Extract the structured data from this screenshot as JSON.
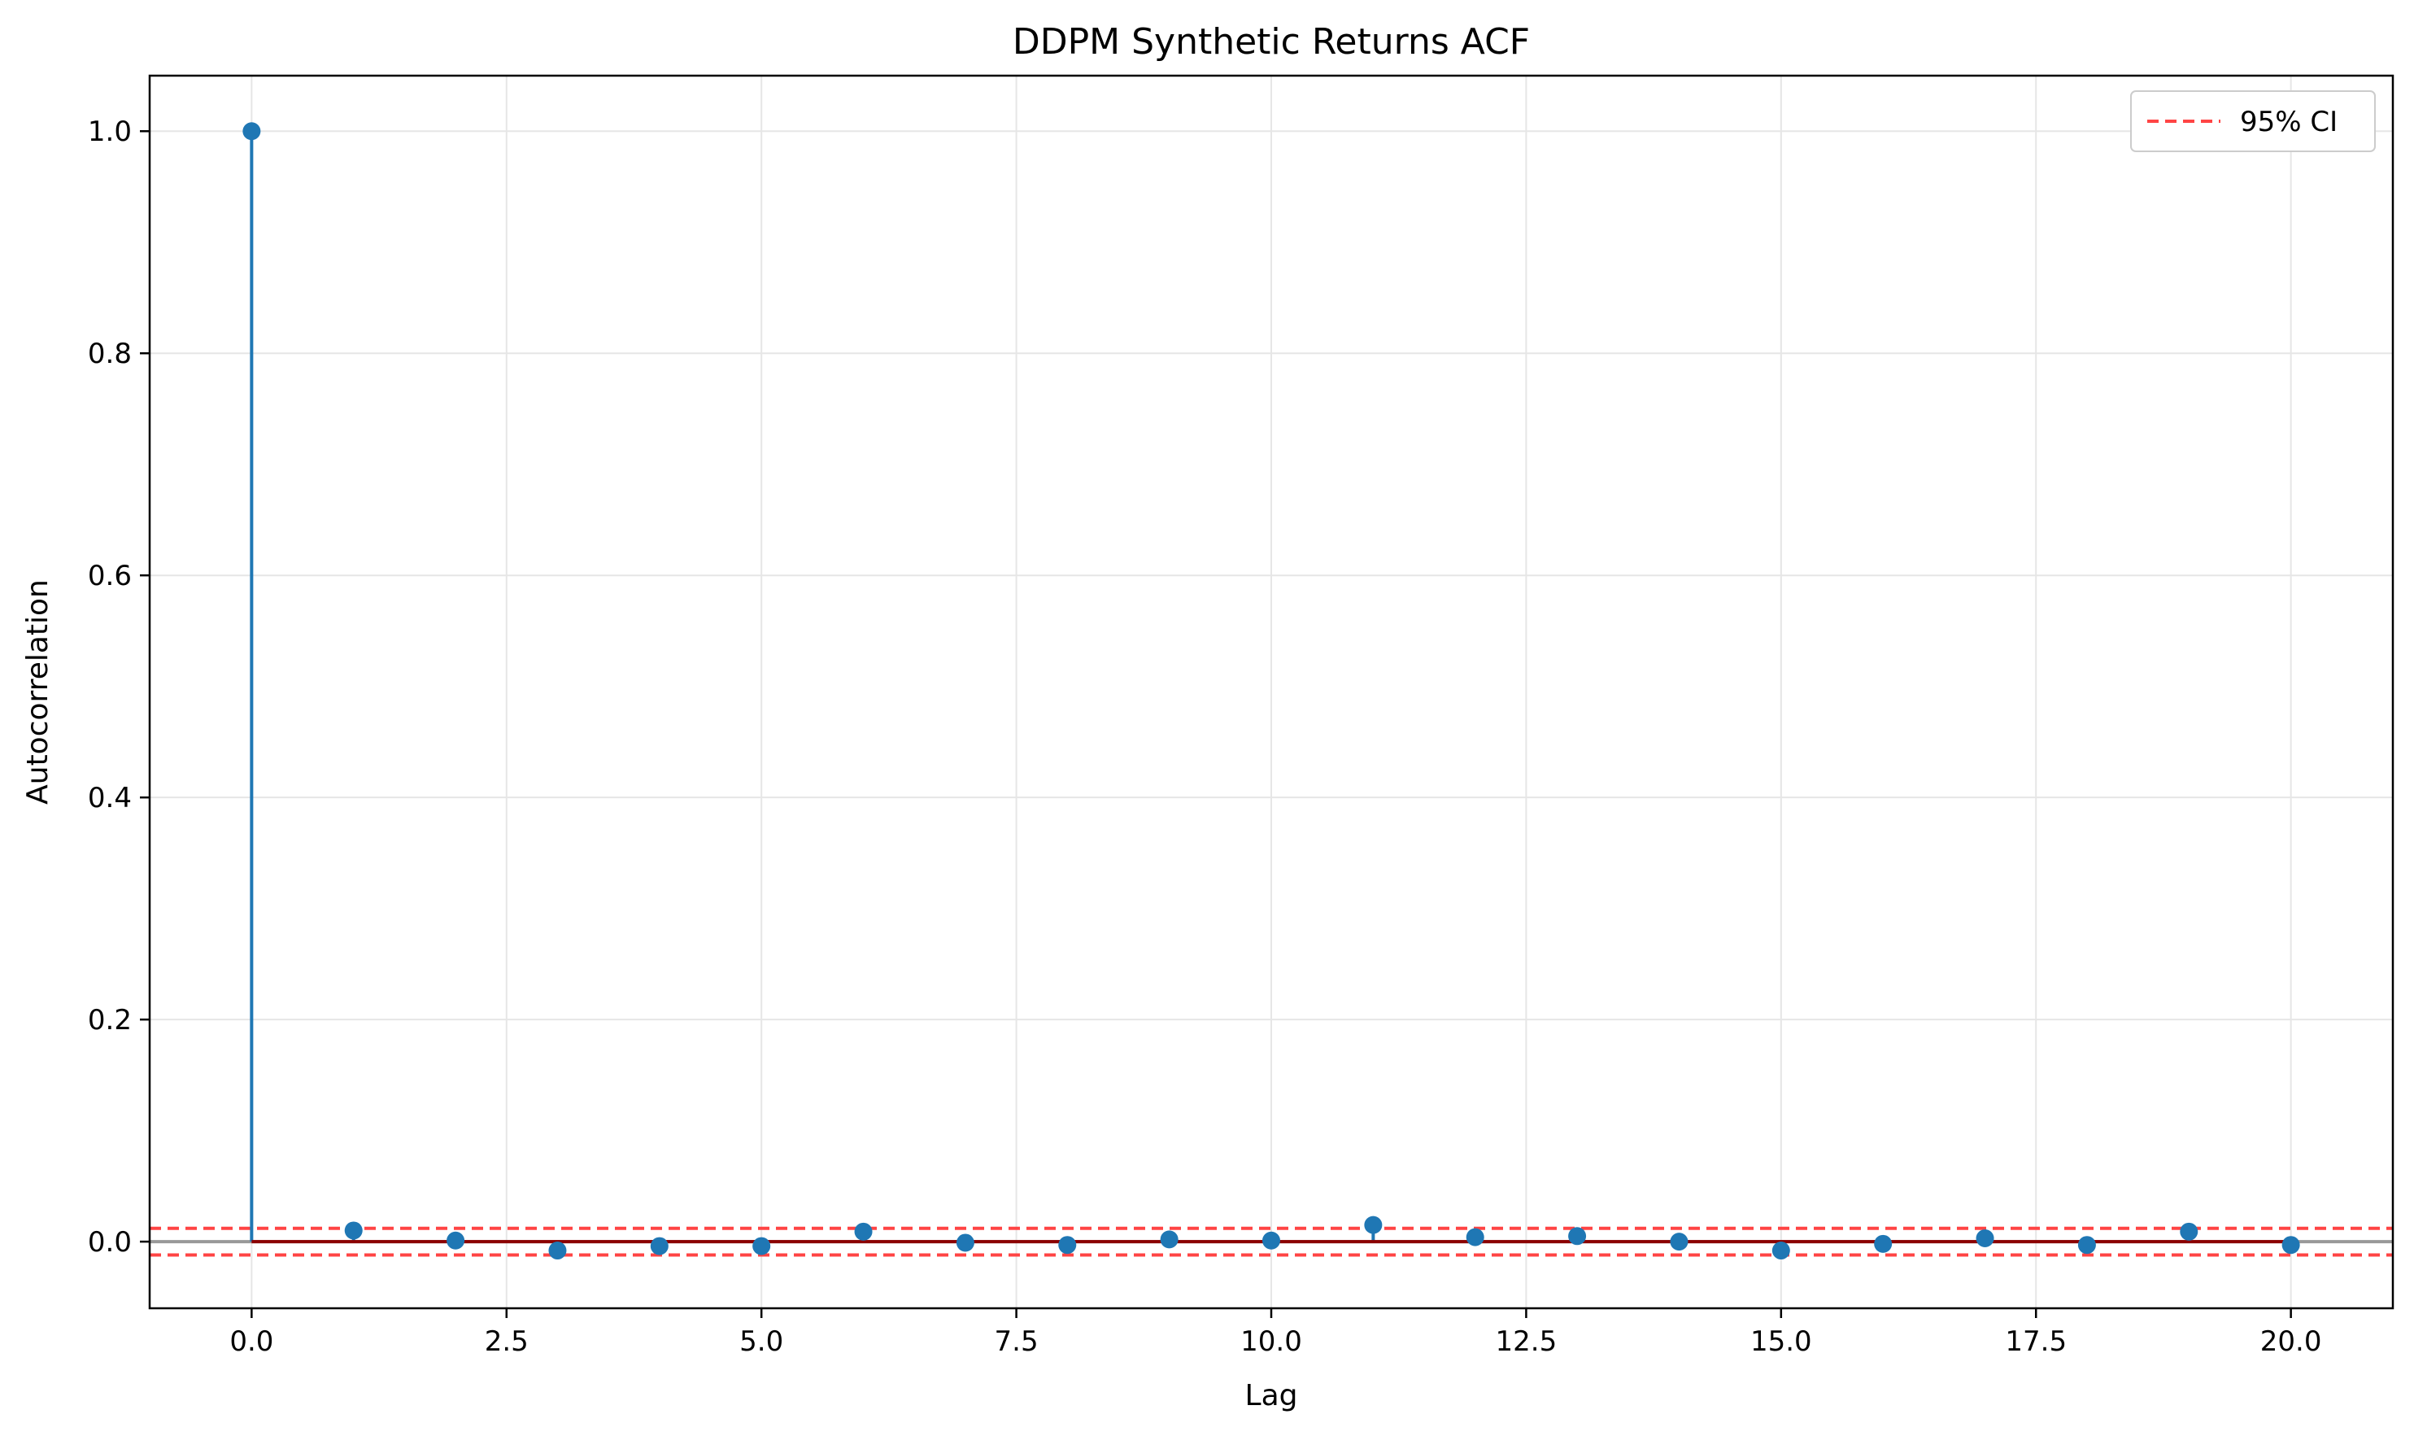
{
  "chart_data": {
    "type": "stem",
    "title": "DDPM Synthetic Returns ACF",
    "xlabel": "Lag",
    "ylabel": "Autocorrelation",
    "xlim": [
      -1,
      21
    ],
    "ylim": [
      -0.06,
      1.05
    ],
    "xticks": [
      0.0,
      2.5,
      5.0,
      7.5,
      10.0,
      12.5,
      15.0,
      17.5,
      20.0
    ],
    "xtick_labels": [
      "0.0",
      "2.5",
      "5.0",
      "7.5",
      "10.0",
      "12.5",
      "15.0",
      "17.5",
      "20.0"
    ],
    "yticks": [
      0.0,
      0.2,
      0.4,
      0.6,
      0.8,
      1.0
    ],
    "ytick_labels": [
      "0.0",
      "0.2",
      "0.4",
      "0.6",
      "0.8",
      "1.0"
    ],
    "grid": true,
    "legend_position": "top-right",
    "series": [
      {
        "type": "stem",
        "color": "#1f77b4",
        "x": [
          0,
          1,
          2,
          3,
          4,
          5,
          6,
          7,
          8,
          9,
          10,
          11,
          12,
          13,
          14,
          15,
          16,
          17,
          18,
          19,
          20
        ],
        "values": [
          1.0,
          0.01,
          0.001,
          -0.008,
          -0.004,
          -0.004,
          0.009,
          -0.001,
          -0.003,
          0.002,
          0.001,
          0.015,
          0.004,
          0.005,
          0.0,
          -0.008,
          -0.002,
          0.003,
          -0.003,
          0.009,
          -0.003
        ]
      }
    ],
    "baseline": {
      "value": 0.0,
      "color": "#8b0000",
      "zero_line_color": "#999999"
    },
    "confidence_interval": {
      "name": "95% CI",
      "upper": 0.012,
      "lower": -0.012,
      "color": "#ff4444",
      "style": "dashed"
    }
  }
}
